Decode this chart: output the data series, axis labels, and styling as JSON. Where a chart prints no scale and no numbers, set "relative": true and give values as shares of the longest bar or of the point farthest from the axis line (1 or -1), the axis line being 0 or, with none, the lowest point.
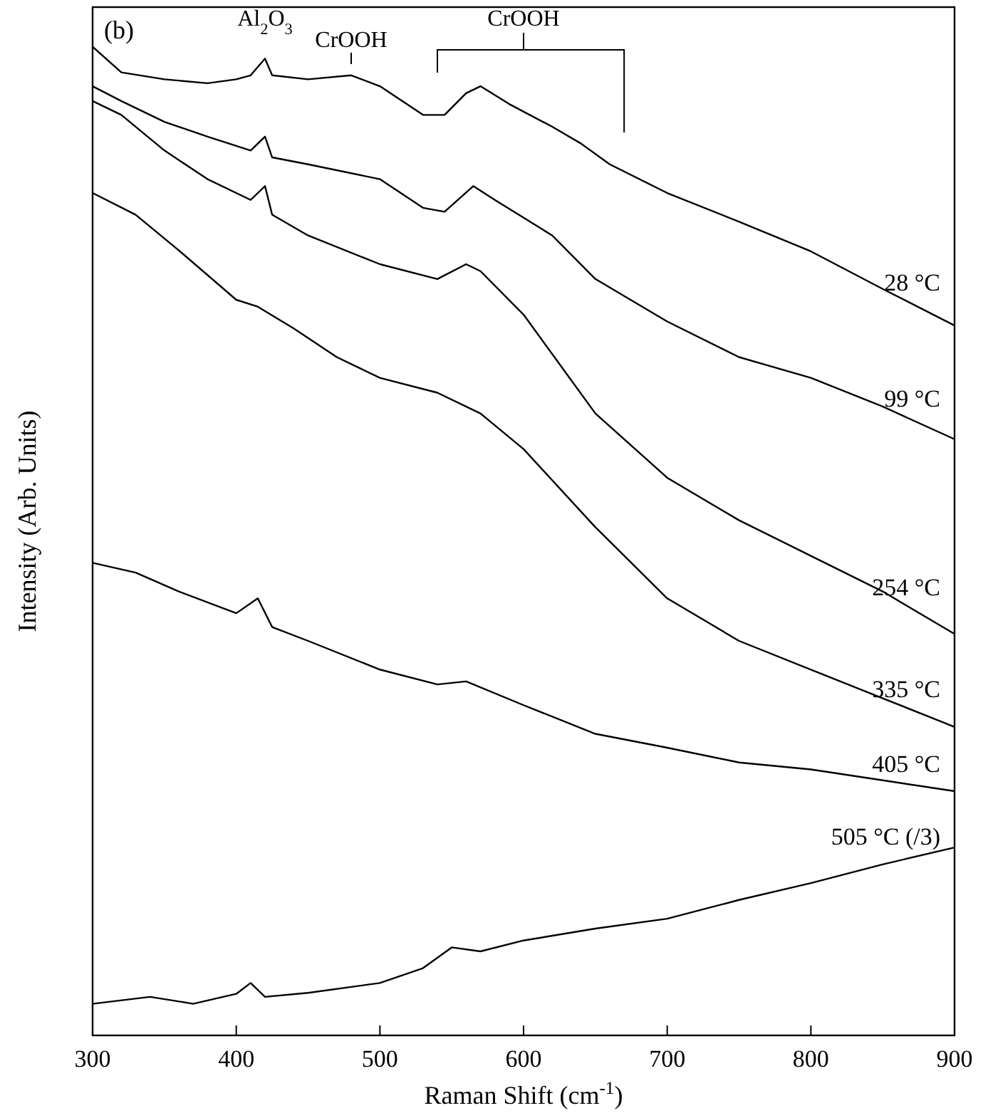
{
  "chart_data": {
    "type": "line",
    "relative": true,
    "xlabel": "Raman Shift (cm$^{-1}$)",
    "ylabel": "Intensity (Arb. Units)",
    "xlim": [
      300,
      900
    ],
    "xticks": [
      300,
      400,
      500,
      600,
      700,
      800,
      900
    ],
    "annotations": [
      "(b)",
      "Al$_{2}$O$_{3}$",
      "CrOOH",
      "CrOOH"
    ],
    "series": [
      {
        "name": "28 °C",
        "color": "#000000",
        "x": [
          300,
          320,
          350,
          380,
          400,
          410,
          420,
          425,
          450,
          480,
          500,
          530,
          545,
          560,
          570,
          590,
          620,
          640,
          660,
          700,
          750,
          800,
          850,
          900
        ],
        "values": [
          1.0,
          0.974,
          0.967,
          0.963,
          0.967,
          0.971,
          0.988,
          0.971,
          0.967,
          0.971,
          0.96,
          0.931,
          0.931,
          0.953,
          0.96,
          0.942,
          0.919,
          0.902,
          0.881,
          0.852,
          0.823,
          0.793,
          0.755,
          0.718
        ]
      },
      {
        "name": "99 °C",
        "color": "#000000",
        "x": [
          300,
          320,
          350,
          380,
          410,
          420,
          425,
          450,
          500,
          530,
          545,
          565,
          580,
          620,
          650,
          700,
          750,
          800,
          850,
          900
        ],
        "values": [
          0.96,
          0.945,
          0.924,
          0.909,
          0.895,
          0.909,
          0.888,
          0.881,
          0.866,
          0.837,
          0.833,
          0.859,
          0.845,
          0.809,
          0.765,
          0.722,
          0.686,
          0.665,
          0.636,
          0.603
        ]
      },
      {
        "name": "254 °C",
        "color": "#000000",
        "x": [
          300,
          320,
          350,
          380,
          410,
          420,
          425,
          450,
          500,
          540,
          560,
          570,
          600,
          650,
          700,
          750,
          800,
          850,
          900
        ],
        "values": [
          0.945,
          0.931,
          0.895,
          0.866,
          0.845,
          0.859,
          0.83,
          0.809,
          0.78,
          0.765,
          0.78,
          0.773,
          0.729,
          0.629,
          0.564,
          0.521,
          0.485,
          0.449,
          0.406
        ]
      },
      {
        "name": "335 °C",
        "color": "#000000",
        "x": [
          300,
          330,
          360,
          400,
          415,
          440,
          470,
          500,
          540,
          570,
          600,
          650,
          700,
          750,
          800,
          850,
          900
        ],
        "values": [
          0.852,
          0.83,
          0.794,
          0.744,
          0.737,
          0.715,
          0.686,
          0.665,
          0.65,
          0.629,
          0.593,
          0.514,
          0.442,
          0.399,
          0.37,
          0.341,
          0.312
        ]
      },
      {
        "name": "405 °C",
        "color": "#000000",
        "x": [
          300,
          330,
          360,
          400,
          415,
          425,
          450,
          500,
          540,
          560,
          600,
          650,
          700,
          750,
          800,
          850,
          900
        ],
        "values": [
          0.478,
          0.468,
          0.449,
          0.427,
          0.442,
          0.413,
          0.399,
          0.37,
          0.355,
          0.358,
          0.334,
          0.305,
          0.291,
          0.276,
          0.269,
          0.258,
          0.247
        ]
      },
      {
        "name": "505 °C (/3)",
        "color": "#000000",
        "x": [
          300,
          340,
          370,
          400,
          410,
          420,
          450,
          500,
          530,
          550,
          570,
          600,
          650,
          700,
          750,
          800,
          850,
          900
        ],
        "values": [
          0.032,
          0.039,
          0.032,
          0.042,
          0.053,
          0.039,
          0.043,
          0.053,
          0.068,
          0.089,
          0.085,
          0.096,
          0.108,
          0.118,
          0.137,
          0.154,
          0.173,
          0.19
        ]
      }
    ]
  }
}
